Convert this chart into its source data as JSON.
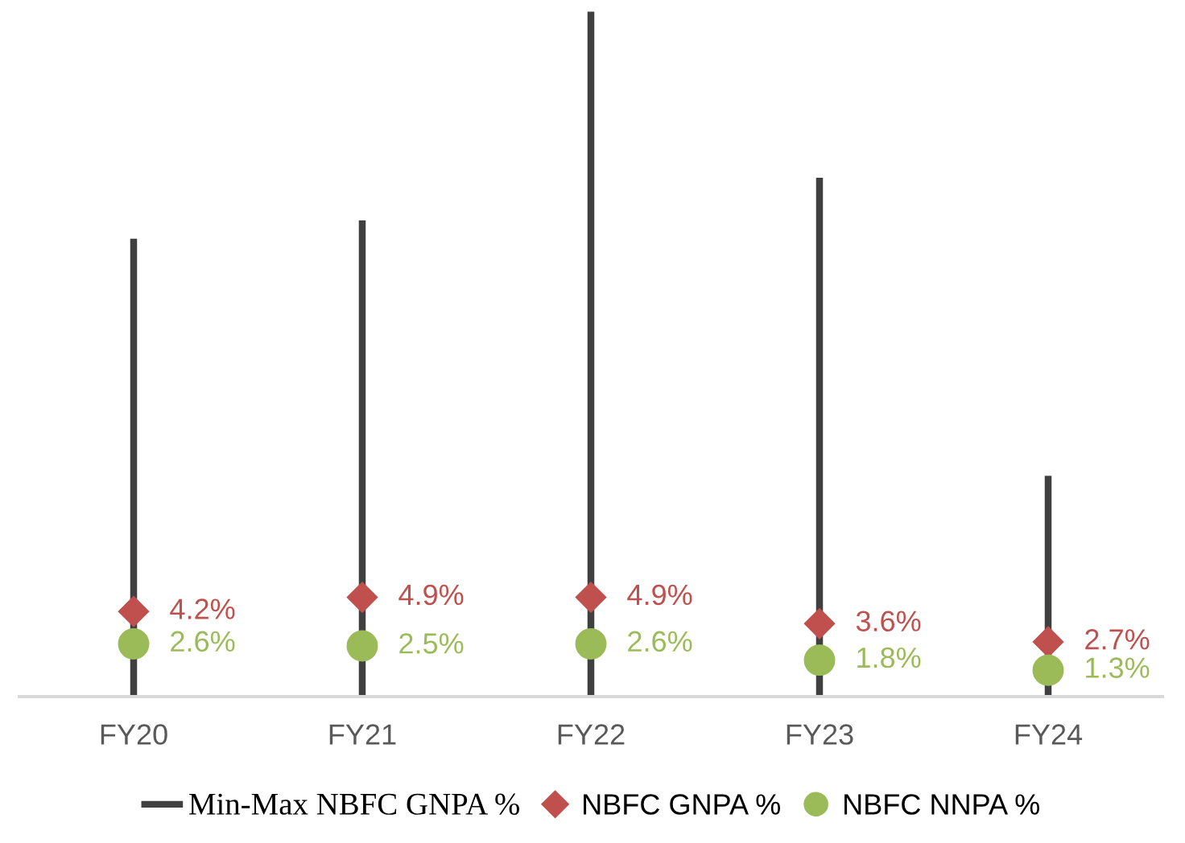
{
  "chart_data": {
    "type": "scatter",
    "categories": [
      "FY20",
      "FY21",
      "FY22",
      "FY23",
      "FY24"
    ],
    "tick_labels": "x",
    "grid": false,
    "legend": "bottom",
    "series": [
      {
        "name": "Min-Max NBFC GNPA %",
        "type": "bar",
        "color": "#404040",
        "values": [
          22.6,
          23.5,
          33.8,
          25.6,
          10.9
        ]
      },
      {
        "name": "NBFC GNPA %",
        "marker": "diamond",
        "color": "#c0504d",
        "values": [
          4.2,
          4.9,
          4.9,
          3.6,
          2.7
        ],
        "value_labels": [
          "4.2%",
          "4.9%",
          "4.9%",
          "3.6%",
          "2.7%"
        ]
      },
      {
        "name": "NBFC NNPA %",
        "marker": "circle",
        "color": "#9bbb59",
        "values": [
          2.6,
          2.5,
          2.6,
          1.8,
          1.3
        ],
        "value_labels": [
          "2.6%",
          "2.5%",
          "2.6%",
          "1.8%",
          "1.3%"
        ]
      }
    ]
  }
}
